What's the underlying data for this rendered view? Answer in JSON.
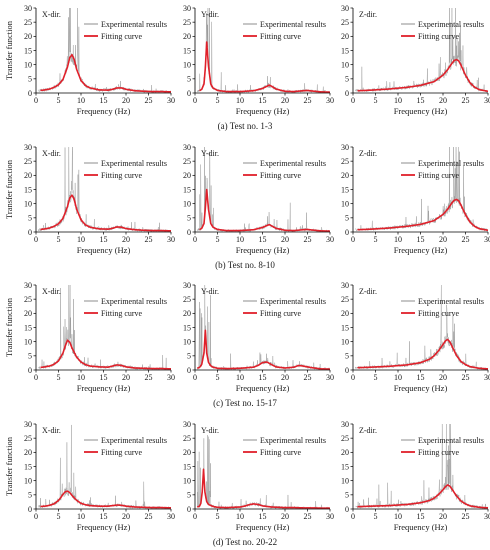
{
  "figure": {
    "ylabel": "Transfer function",
    "xlabel": "Frequency (Hz)",
    "xticks": [
      0,
      5,
      10,
      15,
      20,
      25,
      30
    ],
    "yticks": [
      0,
      5,
      10,
      15,
      20,
      25,
      30
    ],
    "legend": {
      "experimental": "Experimental results",
      "fitting": "Fitting curve"
    },
    "colors": {
      "experimental": "#8c8c8c",
      "fitting": "#e0202a",
      "axis": "#000000",
      "text": "#1a1a1a"
    }
  },
  "chart_data": [
    {
      "caption": "(a) Test no. 1-3",
      "panels": [
        {
          "direction": "X-dir.",
          "type": "line",
          "xlim": [
            0,
            30
          ],
          "ylim": [
            0,
            30
          ],
          "fitting_curve": {
            "x": [
              1,
              2,
              3,
              4,
              5,
              6,
              7,
              7.5,
              8,
              8.5,
              9,
              10,
              11,
              12,
              14,
              16,
              17,
              18,
              19,
              20,
              22,
              24,
              26,
              28,
              30
            ],
            "y": [
              0.9,
              1.1,
              1.4,
              2.0,
              2.9,
              4.8,
              9.2,
              12.5,
              13.5,
              11.8,
              8.5,
              4.4,
              2.6,
              1.8,
              1.1,
              1.0,
              1.3,
              1.8,
              1.8,
              1.3,
              0.8,
              0.6,
              0.5,
              0.5,
              0.4
            ]
          },
          "peak_frequency_hz": 8,
          "peak_value": 13.5
        },
        {
          "direction": "Y-dir.",
          "type": "line",
          "xlim": [
            0,
            30
          ],
          "ylim": [
            0,
            30
          ],
          "fitting_curve": {
            "x": [
              1,
              1.5,
              2,
              2.3,
              2.6,
              3,
              3.5,
              4,
              5,
              7,
              10,
              13,
              15,
              16,
              16.5,
              17,
              18,
              20,
              22,
              24,
              25,
              26,
              28,
              30
            ],
            "y": [
              0.8,
              1.3,
              3.2,
              9.0,
              18.0,
              9.5,
              3.2,
              1.8,
              0.9,
              0.5,
              0.5,
              0.8,
              1.6,
              2.4,
              2.8,
              2.4,
              1.4,
              0.6,
              0.5,
              0.8,
              0.9,
              0.7,
              0.4,
              0.3
            ]
          },
          "peak_frequency_hz": 2.6,
          "peak_value": 18
        },
        {
          "direction": "Z-dir.",
          "type": "line",
          "xlim": [
            0,
            30
          ],
          "ylim": [
            0,
            30
          ],
          "fitting_curve": {
            "x": [
              1,
              4,
              8,
              12,
              15,
              18,
              20,
              21,
              22,
              22.5,
              23,
              23.5,
              24,
              25,
              26,
              27,
              28,
              30
            ],
            "y": [
              0.8,
              1.0,
              1.4,
              2.0,
              2.7,
              4.0,
              6.3,
              8.2,
              10.5,
              11.5,
              11.8,
              11.3,
              9.8,
              6.3,
              3.6,
              2.1,
              1.2,
              0.6
            ]
          },
          "peak_frequency_hz": 23,
          "peak_value": 11.8
        }
      ]
    },
    {
      "caption": "(b) Test no. 8-10",
      "panels": [
        {
          "direction": "X-dir.",
          "type": "line",
          "xlim": [
            0,
            30
          ],
          "ylim": [
            0,
            30
          ],
          "fitting_curve": {
            "x": [
              1,
              2,
              3,
              4,
              5,
              6,
              7,
              7.5,
              8,
              8.5,
              9,
              10,
              11,
              12,
              14,
              16,
              17,
              18,
              19,
              20,
              22,
              24,
              26,
              28,
              30
            ],
            "y": [
              0.9,
              1.1,
              1.4,
              2.0,
              2.9,
              4.8,
              9.0,
              12.0,
              13.0,
              11.5,
              8.2,
              4.3,
              2.5,
              1.7,
              1.1,
              1.0,
              1.3,
              1.8,
              1.7,
              1.2,
              0.8,
              0.6,
              0.5,
              0.5,
              0.4
            ]
          },
          "peak_frequency_hz": 8,
          "peak_value": 13
        },
        {
          "direction": "Y-dir.",
          "type": "line",
          "xlim": [
            0,
            30
          ],
          "ylim": [
            0,
            30
          ],
          "fitting_curve": {
            "x": [
              1,
              1.5,
              2,
              2.3,
              2.6,
              3,
              3.5,
              4,
              5,
              7,
              10,
              13,
              15,
              16,
              16.5,
              17,
              18,
              20,
              22,
              24,
              25,
              26,
              28,
              30
            ],
            "y": [
              0.8,
              1.3,
              3.0,
              8.5,
              15.0,
              8.0,
              3.0,
              1.7,
              0.9,
              0.5,
              0.5,
              0.8,
              1.6,
              2.3,
              2.6,
              2.2,
              1.3,
              0.6,
              0.5,
              0.8,
              0.9,
              0.7,
              0.4,
              0.3
            ]
          },
          "peak_frequency_hz": 2.6,
          "peak_value": 15
        },
        {
          "direction": "Z-dir.",
          "type": "line",
          "xlim": [
            0,
            30
          ],
          "ylim": [
            0,
            30
          ],
          "fitting_curve": {
            "x": [
              1,
              4,
              8,
              12,
              15,
              18,
              20,
              21,
              22,
              22.5,
              23,
              23.5,
              24,
              25,
              26,
              27,
              28,
              30
            ],
            "y": [
              0.8,
              1.0,
              1.4,
              2.0,
              2.7,
              4.0,
              6.2,
              8.0,
              10.3,
              11.2,
              11.5,
              11.0,
              9.5,
              6.1,
              3.5,
              2.0,
              1.2,
              0.6
            ]
          },
          "peak_frequency_hz": 23,
          "peak_value": 11.5
        }
      ]
    },
    {
      "caption": "(c) Test no. 15-17",
      "panels": [
        {
          "direction": "X-dir.",
          "type": "line",
          "xlim": [
            0,
            30
          ],
          "ylim": [
            0,
            30
          ],
          "fitting_curve": {
            "x": [
              1,
              2,
              3,
              4,
              5,
              6,
              6.5,
              7,
              7.5,
              8,
              9,
              10,
              11,
              12,
              14,
              16,
              17,
              18,
              19,
              20,
              22,
              24,
              26,
              28,
              30
            ],
            "y": [
              0.9,
              1.1,
              1.4,
              2.0,
              3.2,
              6.0,
              8.5,
              10.5,
              9.8,
              7.8,
              4.6,
              2.8,
              1.9,
              1.4,
              1.1,
              1.0,
              1.4,
              1.8,
              1.6,
              1.1,
              0.7,
              0.6,
              0.5,
              0.5,
              0.4
            ]
          },
          "peak_frequency_hz": 7,
          "peak_value": 10.5
        },
        {
          "direction": "Y-dir.",
          "type": "line",
          "xlim": [
            0,
            30
          ],
          "ylim": [
            0,
            30
          ],
          "fitting_curve": {
            "x": [
              0.5,
              1,
              1.5,
              2,
              2.3,
              2.6,
              3,
              3.5,
              4,
              5,
              7,
              10,
              13,
              14,
              15,
              16,
              17,
              18,
              20,
              22,
              23,
              24,
              26,
              28,
              30
            ],
            "y": [
              0.6,
              0.9,
              2.0,
              6.0,
              14.0,
              6.0,
              2.7,
              1.5,
              1.0,
              0.6,
              0.5,
              0.6,
              1.0,
              1.6,
              2.6,
              2.8,
              1.9,
              1.1,
              0.7,
              1.0,
              1.6,
              1.4,
              0.8,
              0.4,
              0.3
            ]
          },
          "peak_frequency_hz": 2.3,
          "peak_value": 14
        },
        {
          "direction": "Z-dir.",
          "type": "line",
          "xlim": [
            0,
            30
          ],
          "ylim": [
            0,
            30
          ],
          "fitting_curve": {
            "x": [
              1,
              4,
              8,
              12,
              15,
              17,
              18,
              19,
              20,
              20.5,
              21,
              21.5,
              22,
              23,
              24,
              25,
              26,
              28,
              30
            ],
            "y": [
              0.8,
              1.0,
              1.3,
              1.8,
              2.6,
              3.8,
              5.0,
              6.8,
              9.0,
              10.2,
              10.8,
              10.0,
              8.4,
              5.1,
              3.0,
              1.9,
              1.2,
              0.6,
              0.4
            ]
          },
          "peak_frequency_hz": 21,
          "peak_value": 10.8
        }
      ]
    },
    {
      "caption": "(d) Test no. 20-22",
      "panels": [
        {
          "direction": "X-dir.",
          "type": "line",
          "xlim": [
            0,
            30
          ],
          "ylim": [
            0,
            30
          ],
          "fitting_curve": {
            "x": [
              1,
              2,
              3,
              4,
              5,
              5.5,
              6,
              6.5,
              7,
              7.5,
              8,
              9,
              10,
              11,
              12,
              14,
              16,
              17,
              18,
              19,
              20,
              22,
              24,
              26,
              28,
              30
            ],
            "y": [
              0.9,
              1.0,
              1.3,
              1.8,
              3.0,
              4.0,
              5.2,
              6.1,
              6.3,
              5.8,
              4.8,
              3.1,
              2.0,
              1.5,
              1.2,
              1.0,
              1.0,
              1.2,
              1.4,
              1.3,
              1.0,
              0.7,
              0.6,
              0.5,
              0.5,
              0.4
            ]
          },
          "peak_frequency_hz": 7,
          "peak_value": 6.3
        },
        {
          "direction": "Y-dir.",
          "type": "line",
          "xlim": [
            0,
            30
          ],
          "ylim": [
            0,
            30
          ],
          "fitting_curve": {
            "x": [
              0.5,
              1,
              1.3,
              1.6,
              1.9,
              2.2,
              2.6,
              3,
              4,
              5,
              7,
              10,
              11,
              12,
              13,
              14,
              15,
              17,
              20,
              22,
              24,
              26,
              28,
              30
            ],
            "y": [
              0.7,
              1.0,
              2.0,
              6.0,
              14.0,
              6.0,
              2.6,
              1.6,
              0.9,
              0.6,
              0.5,
              0.7,
              1.0,
              1.5,
              1.8,
              1.6,
              1.1,
              0.7,
              0.5,
              0.5,
              0.4,
              0.4,
              0.3,
              0.3
            ]
          },
          "peak_frequency_hz": 1.9,
          "peak_value": 14
        },
        {
          "direction": "Z-dir.",
          "type": "line",
          "xlim": [
            0,
            30
          ],
          "ylim": [
            0,
            30
          ],
          "fitting_curve": {
            "x": [
              1,
              4,
              8,
              12,
              15,
              17,
              18,
              19,
              20,
              20.5,
              21,
              21.5,
              22,
              23,
              24,
              25,
              26,
              28,
              30
            ],
            "y": [
              0.8,
              1.0,
              1.2,
              1.6,
              2.2,
              3.0,
              3.8,
              5.1,
              6.8,
              7.8,
              8.5,
              8.1,
              7.0,
              4.6,
              2.8,
              1.8,
              1.1,
              0.6,
              0.4
            ]
          },
          "peak_frequency_hz": 21,
          "peak_value": 8.5
        }
      ]
    }
  ]
}
